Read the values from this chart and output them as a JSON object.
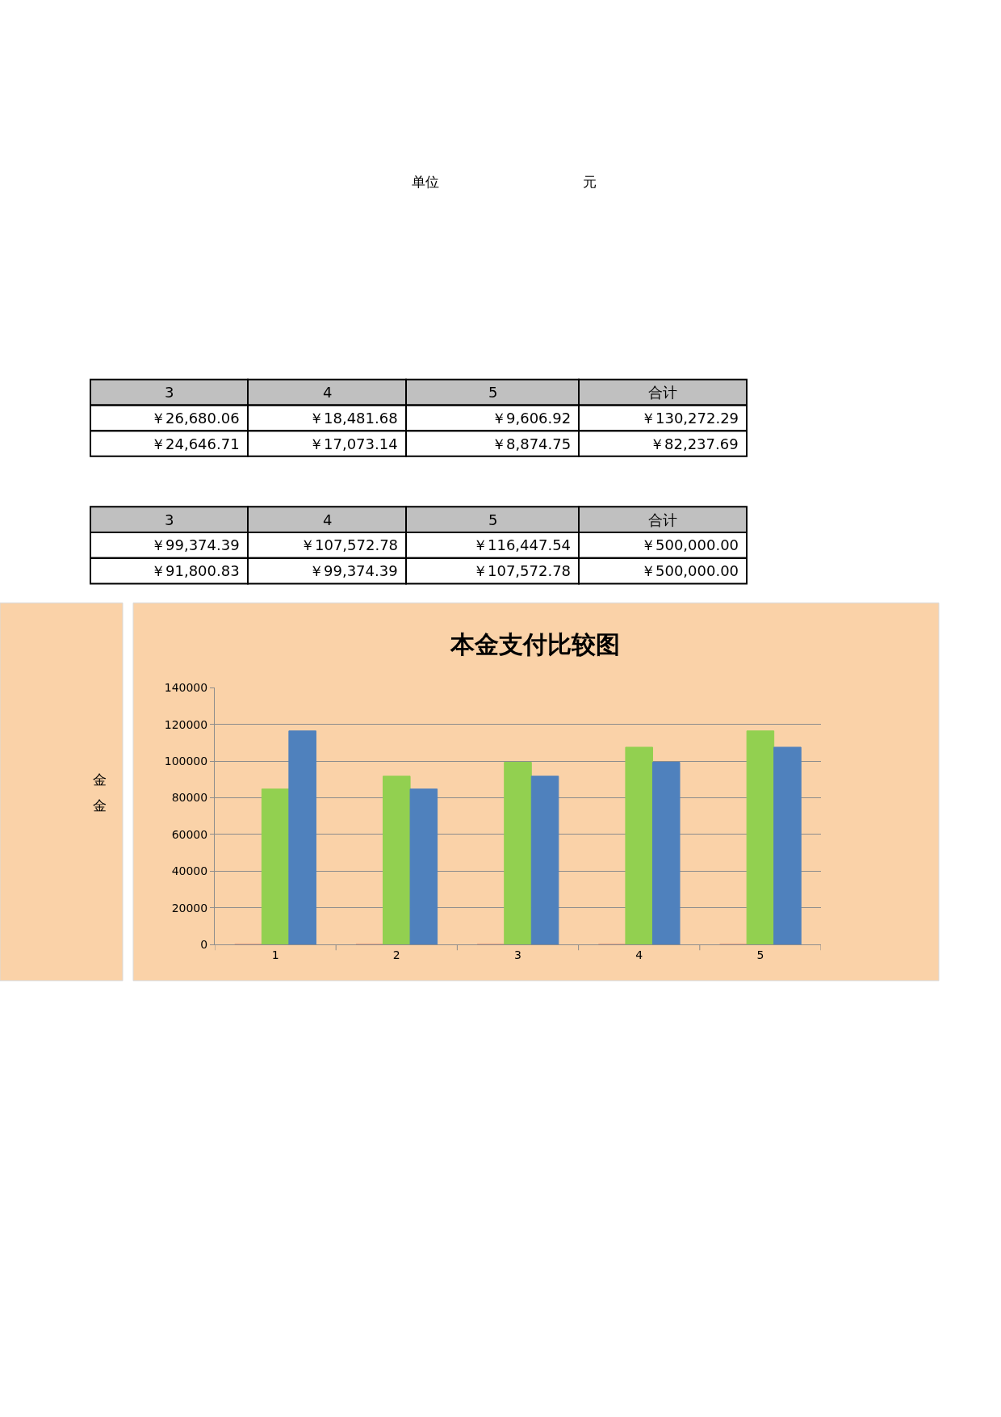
{
  "chart_data": {
    "type": "bar",
    "title": "本金支付比较图",
    "categories": [
      "1",
      "2",
      "3",
      "4",
      "5"
    ],
    "series": [
      {
        "color": "#c0504d",
        "values": [
          0,
          0,
          0,
          0,
          0
        ]
      },
      {
        "color": "#92d050",
        "values": [
          84804.46,
          91800.83,
          99374.39,
          107572.78,
          116447.54
        ]
      },
      {
        "color": "#4f81bd",
        "values": [
          116447.54,
          84804.46,
          91800.83,
          99374.39,
          107572.78
        ]
      }
    ],
    "ylim": [
      0,
      140000
    ],
    "yticks": [
      0,
      20000,
      40000,
      60000,
      80000,
      100000,
      120000,
      140000
    ],
    "grid": "y",
    "annotations": [
      "单位",
      "元",
      "3",
      "4",
      "5",
      "合计",
      "￥26,680.06",
      "￥18,481.68",
      "￥9,606.92",
      "￥130,272.29",
      "￥24,646.71",
      "￥17,073.14",
      "￥8,874.75",
      "￥82,237.69",
      "3",
      "4",
      "5",
      "合计",
      "￥99,374.39",
      "￥107,572.78",
      "￥116,447.54",
      "￥500,000.00",
      "￥91,800.83",
      "￥99,374.39",
      "￥107,572.78",
      "￥500,000.00",
      "金",
      "金"
    ]
  }
}
